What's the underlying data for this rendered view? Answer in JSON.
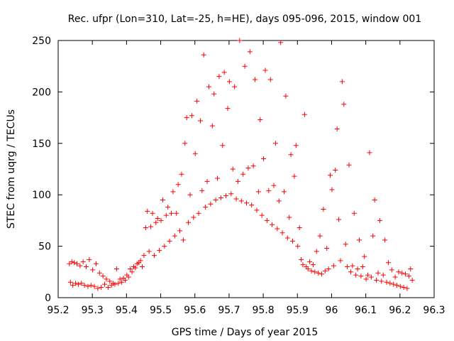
{
  "chart_data": {
    "type": "scatter",
    "title": "Rec. ufpr (Lon=310, Lat=-25, h=HE), days 095-096, 2015, window 001",
    "xlabel": "GPS time / Days of year 2015",
    "ylabel": "STEC from uqrg / TECUs",
    "xlim": [
      95.2,
      96.3
    ],
    "ylim": [
      0,
      250
    ],
    "xticks": [
      95.2,
      95.3,
      95.4,
      95.5,
      95.6,
      95.7,
      95.8,
      95.9,
      96.0,
      96.1,
      96.2,
      96.3
    ],
    "xtick_labels": [
      "95.2",
      "95.3",
      "95.4",
      "95.5",
      "95.6",
      "95.7",
      "95.8",
      "95.9",
      "96",
      "96.1",
      "96.2",
      "96.3"
    ],
    "yticks": [
      0,
      50,
      100,
      150,
      200,
      250
    ],
    "ytick_labels": [
      "0",
      "50",
      "100",
      "150",
      "200",
      "250"
    ],
    "marker": "+",
    "color": "#ff0000",
    "grid": false,
    "series": [
      {
        "name": "STEC",
        "points": [
          [
            95.233,
            33
          ],
          [
            95.236,
            15
          ],
          [
            95.24,
            35
          ],
          [
            95.243,
            12
          ],
          [
            95.247,
            34
          ],
          [
            95.251,
            14
          ],
          [
            95.255,
            33
          ],
          [
            95.259,
            13
          ],
          [
            95.264,
            31
          ],
          [
            95.268,
            14
          ],
          [
            95.273,
            35
          ],
          [
            95.277,
            12
          ],
          [
            95.282,
            30
          ],
          [
            95.287,
            11
          ],
          [
            95.291,
            37
          ],
          [
            95.296,
            12
          ],
          [
            95.301,
            27
          ],
          [
            95.306,
            11
          ],
          [
            95.311,
            33
          ],
          [
            95.316,
            9
          ],
          [
            95.321,
            24
          ],
          [
            95.326,
            10
          ],
          [
            95.331,
            21
          ],
          [
            95.336,
            13
          ],
          [
            95.341,
            18
          ],
          [
            95.346,
            10
          ],
          [
            95.351,
            16
          ],
          [
            95.356,
            12
          ],
          [
            95.361,
            14
          ],
          [
            95.366,
            13
          ],
          [
            95.371,
            28
          ],
          [
            95.376,
            14
          ],
          [
            95.381,
            18
          ],
          [
            95.386,
            15
          ],
          [
            95.391,
            19
          ],
          [
            95.396,
            17
          ],
          [
            95.401,
            22
          ],
          [
            95.406,
            20
          ],
          [
            95.411,
            28
          ],
          [
            95.416,
            25
          ],
          [
            95.421,
            30
          ],
          [
            95.426,
            29
          ],
          [
            95.431,
            33
          ],
          [
            95.436,
            34
          ],
          [
            95.441,
            36
          ],
          [
            95.446,
            30
          ],
          [
            95.451,
            41
          ],
          [
            95.456,
            68
          ],
          [
            95.461,
            84
          ],
          [
            95.466,
            45
          ],
          [
            95.471,
            69
          ],
          [
            95.476,
            82
          ],
          [
            95.481,
            41
          ],
          [
            95.486,
            73
          ],
          [
            95.491,
            77
          ],
          [
            95.496,
            46
          ],
          [
            95.501,
            75
          ],
          [
            95.506,
            95
          ],
          [
            95.511,
            50
          ],
          [
            95.516,
            80
          ],
          [
            95.521,
            88
          ],
          [
            95.526,
            55
          ],
          [
            95.531,
            82
          ],
          [
            95.536,
            103
          ],
          [
            95.541,
            60
          ],
          [
            95.546,
            82
          ],
          [
            95.551,
            110
          ],
          [
            95.556,
            65
          ],
          [
            95.561,
            120
          ],
          [
            95.566,
            56
          ],
          [
            95.571,
            150
          ],
          [
            95.576,
            175
          ],
          [
            95.581,
            73
          ],
          [
            95.586,
            100
          ],
          [
            95.591,
            177
          ],
          [
            95.596,
            78
          ],
          [
            95.601,
            140
          ],
          [
            95.606,
            191
          ],
          [
            95.611,
            82
          ],
          [
            95.616,
            172
          ],
          [
            95.621,
            104
          ],
          [
            95.626,
            236
          ],
          [
            95.631,
            88
          ],
          [
            95.636,
            113
          ],
          [
            95.641,
            205
          ],
          [
            95.646,
            91
          ],
          [
            95.651,
            167
          ],
          [
            95.656,
            198
          ],
          [
            95.661,
            95
          ],
          [
            95.666,
            116
          ],
          [
            95.671,
            215
          ],
          [
            95.676,
            97
          ],
          [
            95.681,
            148
          ],
          [
            95.686,
            219
          ],
          [
            95.691,
            99
          ],
          [
            95.696,
            184
          ],
          [
            95.701,
            210
          ],
          [
            95.706,
            101
          ],
          [
            95.711,
            125
          ],
          [
            95.716,
            205
          ],
          [
            95.721,
            96
          ],
          [
            95.726,
            113
          ],
          [
            95.731,
            250
          ],
          [
            95.736,
            94
          ],
          [
            95.741,
            120
          ],
          [
            95.746,
            225
          ],
          [
            95.751,
            92
          ],
          [
            95.756,
            126
          ],
          [
            95.761,
            239
          ],
          [
            95.766,
            90
          ],
          [
            95.771,
            128
          ],
          [
            95.776,
            212
          ],
          [
            95.781,
            85
          ],
          [
            95.786,
            103
          ],
          [
            95.791,
            173
          ],
          [
            95.796,
            80
          ],
          [
            95.801,
            135
          ],
          [
            95.806,
            221
          ],
          [
            95.811,
            75
          ],
          [
            95.816,
            104
          ],
          [
            95.821,
            212
          ],
          [
            95.826,
            71
          ],
          [
            95.831,
            109
          ],
          [
            95.836,
            150
          ],
          [
            95.841,
            67
          ],
          [
            95.846,
            94
          ],
          [
            95.851,
            248
          ],
          [
            95.856,
            63
          ],
          [
            95.861,
            103
          ],
          [
            95.866,
            196
          ],
          [
            95.871,
            58
          ],
          [
            95.876,
            78
          ],
          [
            95.881,
            139
          ],
          [
            95.886,
            55
          ],
          [
            95.891,
            118
          ],
          [
            95.896,
            148
          ],
          [
            95.901,
            50
          ],
          [
            95.906,
            68
          ],
          [
            95.911,
            37
          ],
          [
            95.916,
            32
          ],
          [
            95.921,
            178
          ],
          [
            95.926,
            30
          ],
          [
            95.931,
            28
          ],
          [
            95.936,
            35
          ],
          [
            95.941,
            26
          ],
          [
            95.946,
            32
          ],
          [
            95.951,
            25
          ],
          [
            95.956,
            45
          ],
          [
            95.961,
            24
          ],
          [
            95.966,
            60
          ],
          [
            95.971,
            23
          ],
          [
            95.976,
            86
          ],
          [
            95.981,
            26
          ],
          [
            95.986,
            48
          ],
          [
            95.991,
            28
          ],
          [
            95.996,
            119
          ],
          [
            96.001,
            105
          ],
          [
            96.006,
            31
          ],
          [
            96.011,
            124
          ],
          [
            96.016,
            164
          ],
          [
            96.021,
            76
          ],
          [
            96.026,
            36
          ],
          [
            96.031,
            210
          ],
          [
            96.036,
            188
          ],
          [
            96.041,
            52
          ],
          [
            96.046,
            30
          ],
          [
            96.051,
            129
          ],
          [
            96.056,
            25
          ],
          [
            96.061,
            31
          ],
          [
            96.066,
            82
          ],
          [
            96.071,
            22
          ],
          [
            96.076,
            28
          ],
          [
            96.081,
            56
          ],
          [
            96.086,
            21
          ],
          [
            96.091,
            30
          ],
          [
            96.096,
            40
          ],
          [
            96.101,
            18
          ],
          [
            96.106,
            22
          ],
          [
            96.111,
            141
          ],
          [
            96.116,
            20
          ],
          [
            96.121,
            60
          ],
          [
            96.126,
            95
          ],
          [
            96.131,
            17
          ],
          [
            96.136,
            24
          ],
          [
            96.141,
            75
          ],
          [
            96.146,
            16
          ],
          [
            96.151,
            22
          ],
          [
            96.156,
            56
          ],
          [
            96.161,
            15
          ],
          [
            96.166,
            34
          ],
          [
            96.171,
            14
          ],
          [
            96.176,
            27
          ],
          [
            96.181,
            13
          ],
          [
            96.186,
            20
          ],
          [
            96.191,
            12
          ],
          [
            96.196,
            25
          ],
          [
            96.201,
            11
          ],
          [
            96.206,
            24
          ],
          [
            96.211,
            10
          ],
          [
            96.216,
            23
          ],
          [
            96.221,
            9
          ],
          [
            96.226,
            21
          ],
          [
            96.231,
            28
          ],
          [
            96.236,
            17
          ]
        ]
      }
    ]
  }
}
